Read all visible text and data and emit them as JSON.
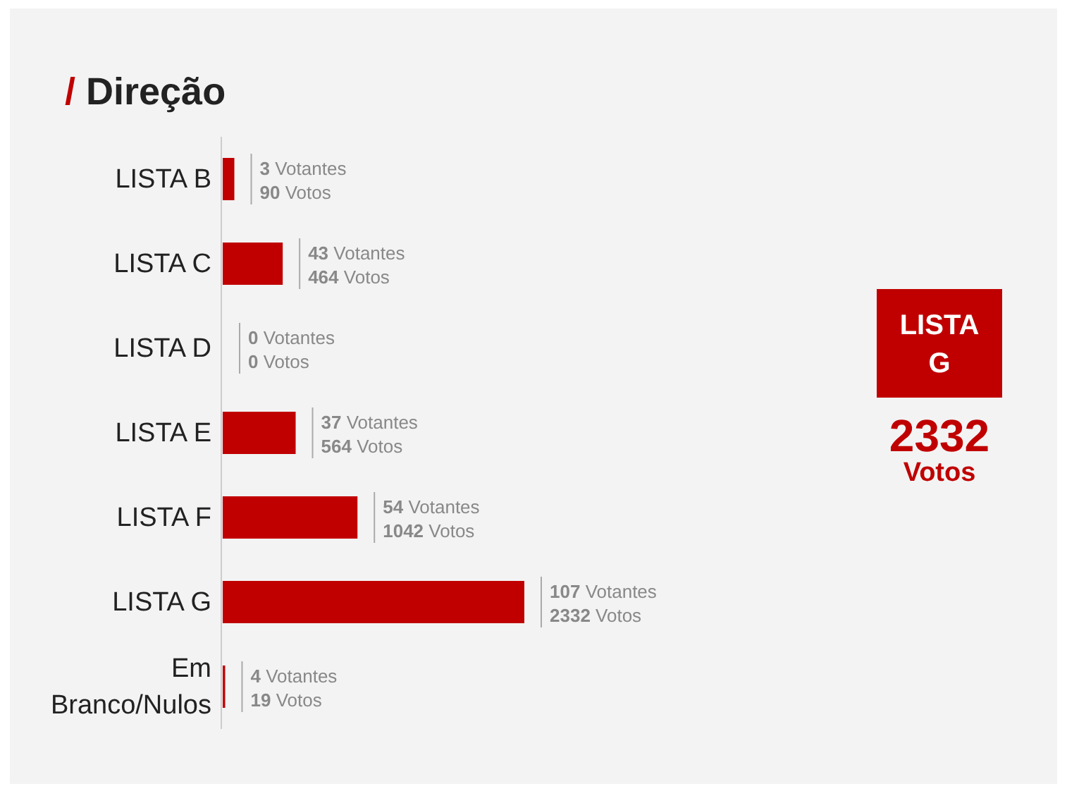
{
  "chart_data": {
    "type": "bar",
    "orientation": "horizontal",
    "title": "/ Direção",
    "categories": [
      "LISTA B",
      "LISTA C",
      "LISTA D",
      "LISTA E",
      "LISTA F",
      "LISTA G",
      "Em Branco/Nulos"
    ],
    "values": [
      90,
      464,
      0,
      564,
      1042,
      2332,
      19
    ],
    "value_labels": [
      "3 Votantes\n90 Votos",
      "43 Votantes\n464 Votos",
      "0 Votantes\n0 Votos",
      "37 Votantes\n564 Votos",
      "54 Votantes\n1042 Votos",
      "107 Votantes\n2332 Votos",
      "4 Votantes\n19 Votos"
    ],
    "color": "#c00000",
    "annotations": [
      "LISTA G",
      "2332",
      "Votos"
    ]
  }
}
